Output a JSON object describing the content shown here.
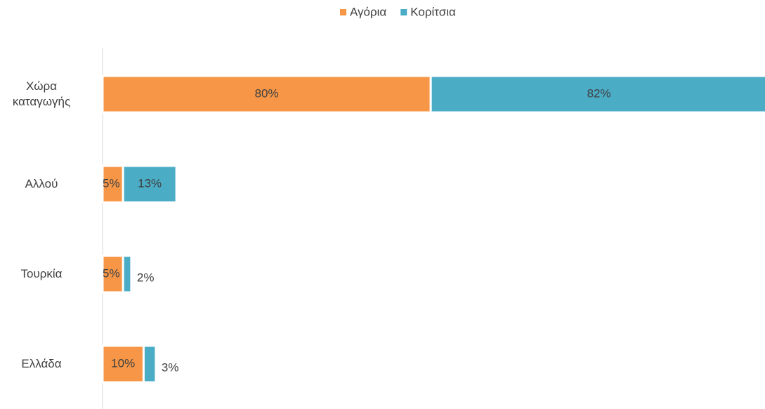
{
  "chart_data": {
    "type": "stacked-bar-horizontal",
    "categories": [
      "Χώρα καταγωγής",
      "Αλλού",
      "Τουρκία",
      "Ελλάδα"
    ],
    "series": [
      {
        "name": "Αγόρια",
        "color": "#f79646",
        "values": [
          80,
          5,
          5,
          10
        ],
        "value_labels": [
          "80%",
          "5%",
          "5%",
          "10%"
        ]
      },
      {
        "name": "Κορίτσια",
        "color": "#4bacc6",
        "values": [
          82,
          13,
          2,
          3
        ],
        "value_labels": [
          "82%",
          "13%",
          "2%",
          "3%"
        ]
      }
    ],
    "xlim": [
      0,
      162
    ],
    "legend": "top"
  }
}
